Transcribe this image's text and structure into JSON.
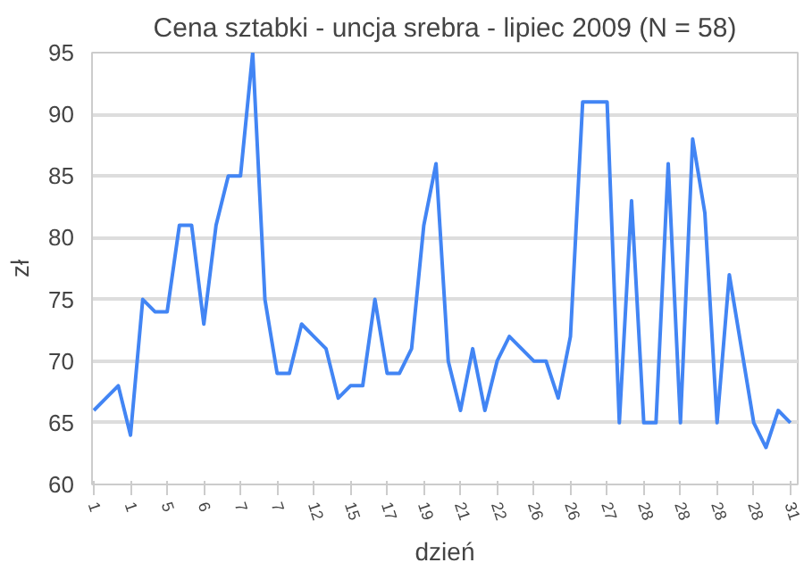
{
  "chart_data": {
    "type": "line",
    "title": "Cena sztabki - uncja srebra - lipiec 2009 (N = 58)",
    "xlabel": "dzień",
    "ylabel": "zł",
    "categories": [
      "1",
      null,
      null,
      "1",
      null,
      null,
      "5",
      null,
      null,
      "6",
      null,
      null,
      "7",
      null,
      null,
      "7",
      null,
      null,
      "12",
      null,
      null,
      "15",
      null,
      null,
      "17",
      null,
      null,
      "19",
      null,
      null,
      "21",
      null,
      null,
      "22",
      null,
      null,
      "26",
      null,
      null,
      "26",
      null,
      null,
      "27",
      null,
      null,
      "28",
      null,
      null,
      "28",
      null,
      null,
      "28",
      null,
      null,
      "28",
      null,
      null,
      "31"
    ],
    "series": [
      {
        "color": "#4285f4",
        "values": [
          66,
          67,
          68,
          64,
          75,
          74,
          74,
          81,
          81,
          73,
          81,
          85,
          85,
          95,
          75,
          69,
          69,
          73,
          72,
          71,
          67,
          68,
          68,
          75,
          69,
          69,
          71,
          81,
          86,
          70,
          66,
          71,
          66,
          70,
          72,
          71,
          70,
          70,
          67,
          72,
          91,
          91,
          91,
          65,
          83,
          65,
          65,
          86,
          65,
          88,
          82,
          65,
          77,
          71,
          65,
          63,
          66,
          65
        ]
      }
    ],
    "ylim": [
      60,
      95
    ],
    "yticks": [
      60,
      65,
      70,
      75,
      80,
      85,
      90,
      95
    ],
    "grid": "y",
    "marker": "none",
    "line_style": "solid"
  }
}
